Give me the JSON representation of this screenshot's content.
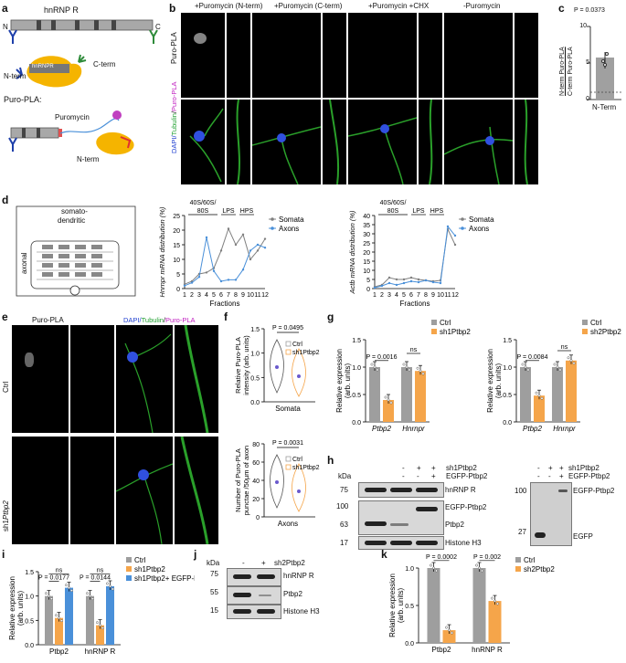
{
  "panels": {
    "a": "a",
    "b": "b",
    "c": "c",
    "d": "d",
    "e": "e",
    "f": "f",
    "g": "g",
    "h": "h",
    "i": "i",
    "j": "j",
    "k": "k"
  },
  "panel_a": {
    "protein": "hnRNP R",
    "n": "N",
    "c": "C",
    "nterm": "N-term",
    "cterm": "C-term",
    "hnrnpr": "hnRNPR",
    "puropla": "Puro-PLA:",
    "puromycin": "Puromycin",
    "nterm2": "N-term"
  },
  "panel_b": {
    "conditions": [
      "+Puromycin (N-term)",
      "+Puromycin (C-term)",
      "+Puromycin +CHX",
      "-Puromycin"
    ],
    "row1_label": "Puro-PLA",
    "row2_label_dapi": "DAPI/",
    "row2_label_tub": "Tubulin",
    "row2_label_sep": "/",
    "row2_label_pla": "Puro-PLA"
  },
  "panel_c": {
    "pvalue": "P = 0.0373",
    "ylabel_top": "N-term Puro-PLA",
    "ylabel_bottom": "C-term Puro-PLA",
    "xlabel": "N-Term",
    "ticks": [
      "0",
      "5",
      "10"
    ]
  },
  "panel_d": {
    "somato": "somato-",
    "dendritic": "dendritic",
    "axonal": "axonal"
  },
  "panel_e": {
    "col1": "Puro-PLA",
    "col2_dapi": "DAPI/",
    "col2_tub": "Tubulin",
    "col2_sep": "/",
    "col2_pla": "Puro-PLA",
    "row1": "Ctrl",
    "row2_prefix": "sh1",
    "row2_gene": "Ptbp2"
  },
  "panel_f": {
    "top_p": "P = 0.0495",
    "top_ylabel": [
      "Relative Puro-PLA",
      "intensity (arb. units)"
    ],
    "top_x": "Somata",
    "bot_p": "P = 0.0031",
    "bot_ylabel": [
      "Number of Puro-PLA",
      "punctae /50µm of axon"
    ],
    "bot_x": "Axons",
    "legend": [
      "Ctrl",
      "sh1Ptbp2"
    ]
  },
  "panel_h": {
    "kda": "kDa",
    "rows_left": [
      "hnRNP R",
      "EGFP-Ptbp2",
      "Ptbp2",
      "Histone H3"
    ],
    "mw_left": [
      "75",
      "100",
      "63",
      "17"
    ],
    "header_sh1": "sh1Ptbp2",
    "header_egfp": "EGFP-Ptbp2",
    "signs_sh1": [
      "-",
      "+",
      "+"
    ],
    "signs_egfp": [
      "-",
      "-",
      "+"
    ],
    "right_labels": [
      "EGFP-Ptbp2",
      "EGFP"
    ],
    "mw_right": [
      "100",
      "27"
    ]
  },
  "panel_j": {
    "kda": "kDa",
    "header": "sh2Ptbp2",
    "signs": [
      "-",
      "+"
    ],
    "rows": [
      "hnRNP R",
      "Ptbp2",
      "Histone H3"
    ],
    "mw": [
      "75",
      "55",
      "15"
    ]
  },
  "chart_data": [
    {
      "id": "d-left",
      "type": "line",
      "ylabel": "Hnrnpr mRNA distribution (%)",
      "xlabel": "Fractions",
      "x": [
        1,
        2,
        3,
        4,
        5,
        6,
        7,
        8,
        9,
        10,
        11,
        12
      ],
      "ylim": [
        0,
        25
      ],
      "yticks": [
        0,
        5,
        10,
        15,
        20,
        25
      ],
      "gradient_labels": [
        "40S/60S/",
        "80S",
        "LPS",
        "HPS"
      ],
      "series": [
        {
          "name": "Somata",
          "color": "#808080",
          "values": [
            1.5,
            2.5,
            5,
            5.5,
            7,
            13,
            20.5,
            15,
            18.5,
            10,
            13,
            17
          ]
        },
        {
          "name": "Axons",
          "color": "#4a90d9",
          "values": [
            1,
            2,
            4,
            17.5,
            6,
            2.5,
            3,
            3,
            6.5,
            13,
            15,
            14
          ]
        }
      ]
    },
    {
      "id": "d-right",
      "type": "line",
      "ylabel": "Actb mRNA distribution (%)",
      "xlabel": "Fractions",
      "x": [
        1,
        2,
        3,
        4,
        5,
        6,
        7,
        8,
        9,
        10,
        11,
        12
      ],
      "ylim": [
        0,
        40
      ],
      "yticks": [
        0,
        5,
        10,
        15,
        20,
        25,
        30,
        35,
        40
      ],
      "gradient_labels": [
        "40S/60S/",
        "80S",
        "LPS",
        "HPS"
      ],
      "series": [
        {
          "name": "Somata",
          "color": "#808080",
          "values": [
            1,
            2,
            6,
            5,
            5,
            6,
            5,
            4.5,
            4,
            4.5,
            32.5,
            24
          ]
        },
        {
          "name": "Axons",
          "color": "#4a90d9",
          "values": [
            0.5,
            1.5,
            3,
            2,
            3,
            4,
            3.5,
            4.5,
            3.5,
            3,
            34,
            29
          ]
        }
      ]
    },
    {
      "id": "g-left",
      "type": "bar",
      "ylabel": "Relative expression (arb. units)",
      "categories": [
        "Ptbp2",
        "Hnrnpr"
      ],
      "ylim": [
        0,
        1.5
      ],
      "yticks": [
        0,
        0.5,
        1.0,
        1.5
      ],
      "annotations": [
        "P = 0.0016",
        "ns"
      ],
      "series": [
        {
          "name": "Ctrl",
          "color": "#9e9e9e",
          "values": [
            1.0,
            1.0
          ]
        },
        {
          "name": "sh1Ptbp2",
          "color": "#f5a54a",
          "values": [
            0.4,
            0.93
          ]
        }
      ]
    },
    {
      "id": "g-right",
      "type": "bar",
      "ylabel": "Relative expression (arb. units)",
      "categories": [
        "Ptbp2",
        "Hnrnpr"
      ],
      "ylim": [
        0,
        1.5
      ],
      "yticks": [
        0,
        0.5,
        1.0,
        1.5
      ],
      "annotations": [
        "P = 0.0084",
        "ns"
      ],
      "series": [
        {
          "name": "Ctrl",
          "color": "#9e9e9e",
          "values": [
            1.0,
            1.0
          ]
        },
        {
          "name": "sh2Ptbp2",
          "color": "#f5a54a",
          "values": [
            0.48,
            1.12
          ]
        }
      ]
    },
    {
      "id": "i",
      "type": "bar",
      "ylabel": "Relative expression (arb. units)",
      "categories": [
        "Ptbp2",
        "hnRNP R"
      ],
      "ylim": [
        0,
        1.5
      ],
      "yticks": [
        0,
        0.5,
        1.0,
        1.5
      ],
      "annotations": [
        "ns",
        "P = 0.0177",
        "ns",
        "P = 0.0144"
      ],
      "series": [
        {
          "name": "Ctrl",
          "color": "#9e9e9e",
          "values": [
            1.0,
            1.0
          ]
        },
        {
          "name": "sh1Ptbp2",
          "color": "#f5a54a",
          "values": [
            0.55,
            0.4
          ]
        },
        {
          "name": "sh1Ptbp2+ EGFP-Ptbp2",
          "color": "#4a90d9",
          "values": [
            1.17,
            1.2
          ]
        }
      ]
    },
    {
      "id": "k",
      "type": "bar",
      "ylabel": "Relative expression (arb. units)",
      "categories": [
        "Ptbp2",
        "hnRNP R"
      ],
      "ylim": [
        0,
        1.0
      ],
      "yticks": [
        0.0,
        0.5,
        1.0
      ],
      "annotations": [
        "P = 0.0002",
        "P = 0.002"
      ],
      "series": [
        {
          "name": "Ctrl",
          "color": "#9e9e9e",
          "values": [
            1.0,
            1.0
          ]
        },
        {
          "name": "sh2Ptbp2",
          "color": "#f5a54a",
          "values": [
            0.17,
            0.56
          ]
        }
      ]
    },
    {
      "id": "c",
      "type": "bar",
      "categories": [
        "N-Term"
      ],
      "ylim": [
        0,
        10
      ],
      "yticks": [
        0,
        5,
        10
      ],
      "values": [
        5.7
      ]
    }
  ]
}
